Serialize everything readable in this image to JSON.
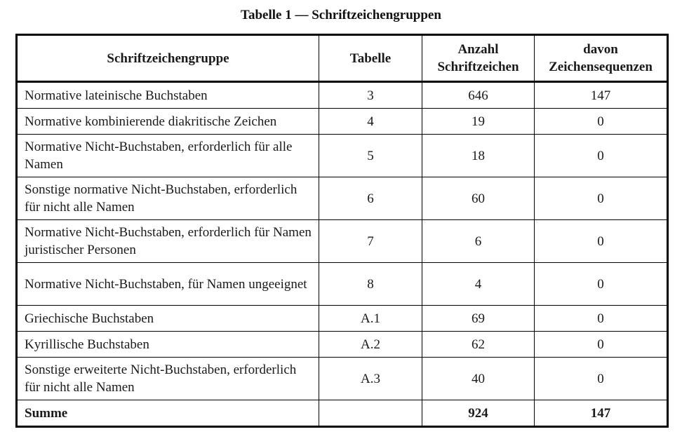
{
  "page": {
    "title": "Tabelle 1 — Schriftzeichengruppen"
  },
  "colors": {
    "background": "#ffffff",
    "border": "#000000",
    "text": "#1a1a1a"
  },
  "table": {
    "headers": {
      "group": "Schriftzeichengruppe",
      "tabelle": "Tabelle",
      "anzahl": "Anzahl\nSchriftzeichen",
      "davon": "davon\nZeichensequenzen"
    },
    "rows": [
      {
        "group": "Normative lateinische Buchstaben",
        "tabelle": "3",
        "anzahl": "646",
        "davon": "147"
      },
      {
        "group": "Normative kombinierende diakritische Zeichen",
        "tabelle": "4",
        "anzahl": "19",
        "davon": "0"
      },
      {
        "group": "Normative Nicht-Buchstaben, erforderlich für alle Namen",
        "tabelle": "5",
        "anzahl": "18",
        "davon": "0"
      },
      {
        "group": "Sonstige normative Nicht-Buchstaben, erforderlich für nicht alle Namen",
        "tabelle": "6",
        "anzahl": "60",
        "davon": "0"
      },
      {
        "group": "Normative Nicht-Buchstaben, erforderlich für Namen juristischer Personen",
        "tabelle": "7",
        "anzahl": "6",
        "davon": "0"
      },
      {
        "group": "Normative Nicht-Buchstaben, für Namen ungeeignet",
        "tabelle": "8",
        "anzahl": "4",
        "davon": "0"
      },
      {
        "group": "Griechische Buchstaben",
        "tabelle": "A.1",
        "anzahl": "69",
        "davon": "0"
      },
      {
        "group": "Kyrillische Buchstaben",
        "tabelle": "A.2",
        "anzahl": "62",
        "davon": "0"
      },
      {
        "group": "Sonstige erweiterte Nicht-Buchstaben, erforderlich für nicht alle Namen",
        "tabelle": "A.3",
        "anzahl": "40",
        "davon": "0"
      }
    ],
    "total": {
      "label": "Summe",
      "tabelle": "",
      "anzahl": "924",
      "davon": "147"
    }
  }
}
